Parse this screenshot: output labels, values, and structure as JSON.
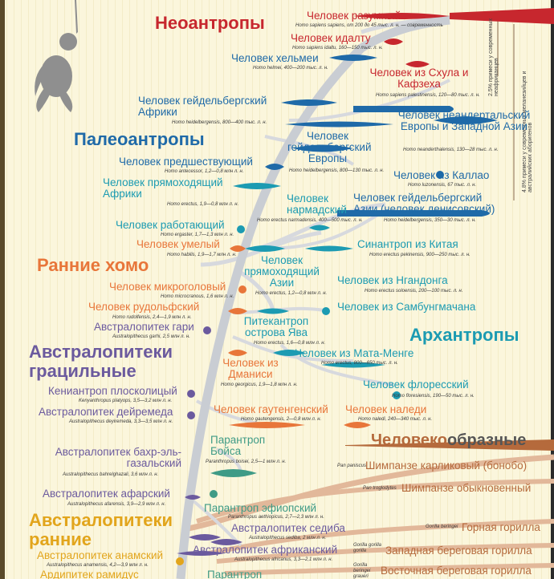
{
  "groups": {
    "neoanthropes": "Неоантропы",
    "paleoanthropes": "Палеоантропы",
    "early_homo": "Ранние хомо",
    "archanthropes": "Архантропы",
    "australopith_gracile": "Австралопитеки грацильные",
    "australopith_early": "Австралопитеки ранние",
    "apes_part1": "Человеко",
    "apes_part2": "образные"
  },
  "side_notes": {
    "neanderthal_admix": "2.5% примеси у современных неафриканцев",
    "denisovan_admix": "4.8% примеси у современных меланезийцев и австралийских аборигенов"
  },
  "colors": {
    "neo": "#c7272e",
    "paleo": "#1f6aa8",
    "arch": "#1c9bb2",
    "early_homo": "#e8763a",
    "gracile": "#6b5a9e",
    "early_aus": "#e2a51c",
    "apes": "#b56a3c",
    "trunk": "#c9cdd3"
  },
  "taxa": [
    {
      "name": "Человек разумный",
      "latin": "Homo sapiens sapiens, от 200 до 45 тыс. л. н. — современность"
    },
    {
      "name": "Человек идалту",
      "latin": "Homo sapiens idaltu, 160—150 тыс. л. н."
    },
    {
      "name": "Человек хельмеи",
      "latin": "Homo helmei, 400—200 тыс. л. н."
    },
    {
      "name": "Человек из Схула и Кафзеха",
      "latin": "Homo sapiens palestinensis, 120—80 тыс. л. н."
    },
    {
      "name": "Человек гейдельбергский Африки",
      "latin": "Homo heidelbergensis, 800—400 тыс. л. н."
    },
    {
      "name": "Человек неандертальский Европы и Западной Азии",
      "latin": "Homo neanderthalensis, 130—28 тыс. л. н."
    },
    {
      "name": "Человек гейдельбергский Европы",
      "latin": "Homo heidelbergensis, 800—130 тыс. л. н."
    },
    {
      "name": "Человек предшествующий",
      "latin": "Homo antecessor, 1,2—0,8 млн л. н."
    },
    {
      "name": "Человек из Каллао",
      "latin": "Homo luzonensis, 67 тыс. л. н."
    },
    {
      "name": "Человек прямоходящий Африки",
      "latin": "Homo erectus, 1,9—0,8 млн л. н."
    },
    {
      "name": "Человек нармадский",
      "latin": "Homo erectus narmadensis, 400—500 тыс. л. н."
    },
    {
      "name": "Человек гейдельбергский Азии (человек денисовский)",
      "latin": "Homo heidelbergensis, 350—30 тыс. л. н."
    },
    {
      "name": "Человек работающий",
      "latin": "Homo ergaster, 1,7—1,3 млн л. н."
    },
    {
      "name": "Человек умелый",
      "latin": "Homo habilis, 1,9—1,7 млн л. н."
    },
    {
      "name": "Синантроп из Китая",
      "latin": "Homo erectus pekinensis, 900—250 тыс. л. н."
    },
    {
      "name": "Человек прямоходящий Азии",
      "latin": "Homo erectus, 1,2—0,8 млн л. н."
    },
    {
      "name": "Человек микроголовый",
      "latin": "Homo microcranous, 1,6 млн л. н."
    },
    {
      "name": "Человек из Нгандонга",
      "latin": "Homo erectus soloensis, 200—100 тыс. л. н."
    },
    {
      "name": "Человек рудольфский",
      "latin": "Homo rudolfensis, 2,4—1,9 млн л. н."
    },
    {
      "name": "Человек из Самбунгмачана",
      "latin": "Homo erectus soloensis, 800 тыс. л. н."
    },
    {
      "name": "Австралопитек гари",
      "latin": "Australopithecus garhi, 2,5 млн л. н."
    },
    {
      "name": "Питекантроп острова Ява",
      "latin": "Homo erectus, 1,6—0,8 млн л. н."
    },
    {
      "name": "Человек из Мата-Менге",
      "latin": "Homo erectus, 800—650 тыс. л. н."
    },
    {
      "name": "Человек из Дманиси",
      "latin": "Homo georgicus, 1,9—1,8 млн л. н."
    },
    {
      "name": "Человек флоресский",
      "latin": "Homo floresiensis, 190—50 тыс. л. н."
    },
    {
      "name": "Кениантроп плосколицый",
      "latin": "Kenyanthropus platyops, 3,5—3,2 млн л. н."
    },
    {
      "name": "Австралопитек дейремеда",
      "latin": "Australopithecus deyiremeda, 3,3—3,5 млн л. н."
    },
    {
      "name": "Человек гаутенгенский",
      "latin": "Homo gautengensis, 2—0,8 млн л. н."
    },
    {
      "name": "Человек наледи",
      "latin": "Homo naledi, 240—340 тыс. л. н."
    },
    {
      "name": "Парантроп Бойса",
      "latin": "Paranthropus boisei, 2,5—1 млн л. н."
    },
    {
      "name": "Австралопитек бахр-эль-газальский",
      "latin": "Australopithecus bahrelghazali, 3,6 млн л. н."
    },
    {
      "name": "Австралопитек афарский",
      "latin": "Australopithecus afarensis, 3,9—2,9 млн л. н."
    },
    {
      "name": "Парантроп эфиопский",
      "latin": "Paranthropus aethiopicus, 2,7—2,3 млн л. н."
    },
    {
      "name": "Австралопитек седиба",
      "latin": "Australopithecus sediba, 2 млн л. н."
    },
    {
      "name": "Австралопитек африканский",
      "latin": "Australopithecus africanus, 3,3—2,1 млн л. н."
    },
    {
      "name": "Австралопитек анамский",
      "latin": "Australopithecus anamensis, 4,2—3,9 млн л. н."
    },
    {
      "name": "Ардипитек рамидус",
      "latin": ""
    },
    {
      "name": "Парантроп",
      "latin": ""
    }
  ],
  "apes": [
    {
      "name": "Шимпанзе карликовый (бонобо)",
      "latin": "Pan paniscus"
    },
    {
      "name": "Шимпанзе обыкновенный",
      "latin": "Pan troglodytes"
    },
    {
      "name": "Горная горилла",
      "latin": "Gorilla beringei"
    },
    {
      "name": "Западная береговая горилла",
      "latin": "Gorilla gorilla gorilla"
    },
    {
      "name": "Восточная береговая горилла",
      "latin": "Gorilla beringei graueri"
    }
  ]
}
